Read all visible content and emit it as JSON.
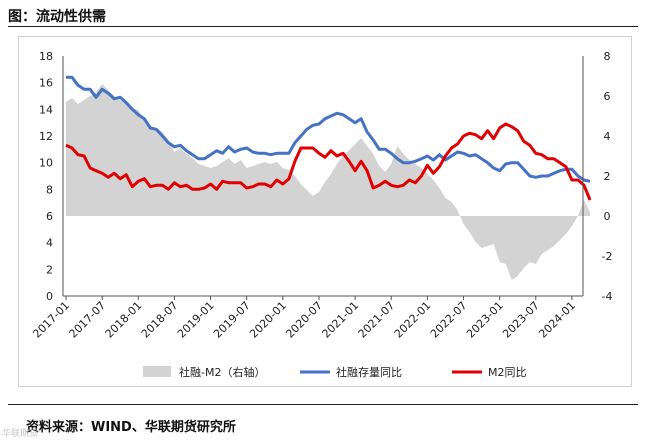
{
  "page_title": "图：流动性供需",
  "source_text": "资料来源：WIND、华联期货研究所",
  "watermark_text": "华联期货",
  "colors": {
    "area": "#d3d3d3",
    "stock_line": "#4472c4",
    "m2_line": "#e00000"
  },
  "chart_data": {
    "type": "line",
    "title": "",
    "xlabel": "",
    "ylabel": "",
    "left_axis": {
      "ylim": [
        0,
        18
      ],
      "ticks": [
        "0",
        "2",
        "4",
        "6",
        "8",
        "10",
        "12",
        "14",
        "16",
        "18"
      ]
    },
    "right_axis": {
      "ylim": [
        -4,
        8
      ],
      "ticks": [
        "-4",
        "-2",
        "0",
        "2",
        "4",
        "6",
        "8"
      ]
    },
    "x_ticks": [
      "2017-01",
      "2017-07",
      "2018-01",
      "2018-07",
      "2019-01",
      "2019-07",
      "2020-01",
      "2020-07",
      "2021-01",
      "2021-07",
      "2022-01",
      "2022-07",
      "2023-01",
      "2023-07",
      "2024-01"
    ],
    "grid": false,
    "legend_position": "bottom",
    "legend": [
      "社融-M2（右轴）",
      "社融存量同比",
      "M2同比"
    ],
    "x": [
      "2017-01",
      "2017-02",
      "2017-03",
      "2017-04",
      "2017-05",
      "2017-06",
      "2017-07",
      "2017-08",
      "2017-09",
      "2017-10",
      "2017-11",
      "2017-12",
      "2018-01",
      "2018-02",
      "2018-03",
      "2018-04",
      "2018-05",
      "2018-06",
      "2018-07",
      "2018-08",
      "2018-09",
      "2018-10",
      "2018-11",
      "2018-12",
      "2019-01",
      "2019-02",
      "2019-03",
      "2019-04",
      "2019-05",
      "2019-06",
      "2019-07",
      "2019-08",
      "2019-09",
      "2019-10",
      "2019-11",
      "2019-12",
      "2020-01",
      "2020-02",
      "2020-03",
      "2020-04",
      "2020-05",
      "2020-06",
      "2020-07",
      "2020-08",
      "2020-09",
      "2020-10",
      "2020-11",
      "2020-12",
      "2021-01",
      "2021-02",
      "2021-03",
      "2021-04",
      "2021-05",
      "2021-06",
      "2021-07",
      "2021-08",
      "2021-09",
      "2021-10",
      "2021-11",
      "2021-12",
      "2022-01",
      "2022-02",
      "2022-03",
      "2022-04",
      "2022-05",
      "2022-06",
      "2022-07",
      "2022-08",
      "2022-09",
      "2022-10",
      "2022-11",
      "2022-12",
      "2023-01",
      "2023-02",
      "2023-03",
      "2023-04",
      "2023-05",
      "2023-06",
      "2023-07",
      "2023-08",
      "2023-09",
      "2023-10",
      "2023-11",
      "2023-12",
      "2024-01",
      "2024-02",
      "2024-03",
      "2024-04"
    ],
    "series": [
      {
        "name": "社融-M2（右轴）",
        "axis": "right",
        "type": "area",
        "values": [
          5.7,
          5.9,
          5.6,
          5.8,
          6.0,
          6.2,
          6.6,
          6.3,
          6.0,
          5.8,
          5.6,
          5.4,
          5.3,
          4.8,
          4.5,
          4.4,
          4.2,
          3.8,
          3.2,
          3.4,
          3.1,
          2.9,
          2.6,
          2.5,
          2.4,
          2.5,
          2.7,
          2.9,
          2.6,
          2.8,
          2.4,
          2.5,
          2.6,
          2.7,
          2.6,
          2.7,
          2.4,
          2.3,
          2.0,
          1.6,
          1.3,
          1.0,
          1.2,
          1.7,
          2.1,
          2.6,
          3.0,
          3.3,
          3.6,
          3.9,
          3.5,
          3.1,
          2.5,
          2.2,
          2.6,
          3.5,
          3.1,
          2.8,
          2.6,
          2.4,
          2.1,
          1.8,
          1.4,
          0.9,
          0.7,
          0.3,
          -0.4,
          -0.8,
          -1.3,
          -1.6,
          -1.5,
          -1.4,
          -2.3,
          -2.4,
          -3.2,
          -3.0,
          -2.6,
          -2.3,
          -2.4,
          -1.9,
          -1.7,
          -1.5,
          -1.2,
          -0.9,
          -0.5,
          0.0,
          0.8,
          0.2
        ]
      },
      {
        "name": "社融存量同比",
        "axis": "left",
        "type": "line",
        "values": [
          16.4,
          16.4,
          15.8,
          15.5,
          15.5,
          14.9,
          15.5,
          15.2,
          14.8,
          14.9,
          14.5,
          14.0,
          13.6,
          13.3,
          12.6,
          12.5,
          12.0,
          11.5,
          11.2,
          11.3,
          10.9,
          10.6,
          10.3,
          10.3,
          10.6,
          10.9,
          10.7,
          11.2,
          10.8,
          11.0,
          11.1,
          10.8,
          10.7,
          10.7,
          10.6,
          10.7,
          10.7,
          10.7,
          11.5,
          12.0,
          12.5,
          12.8,
          12.9,
          13.3,
          13.5,
          13.7,
          13.6,
          13.3,
          13.0,
          13.3,
          12.3,
          11.7,
          11.0,
          11.0,
          10.7,
          10.3,
          10.0,
          10.0,
          10.1,
          10.3,
          10.5,
          10.2,
          10.6,
          10.2,
          10.5,
          10.8,
          10.7,
          10.5,
          10.6,
          10.3,
          10.0,
          9.6,
          9.4,
          9.9,
          10.0,
          10.0,
          9.5,
          9.0,
          8.9,
          9.0,
          9.0,
          9.2,
          9.4,
          9.5,
          9.5,
          9.0,
          8.7,
          8.6
        ]
      },
      {
        "name": "M2同比",
        "axis": "left",
        "type": "line",
        "values": [
          11.3,
          11.1,
          10.6,
          10.5,
          9.6,
          9.4,
          9.2,
          8.9,
          9.2,
          8.8,
          9.1,
          8.2,
          8.6,
          8.8,
          8.2,
          8.3,
          8.3,
          8.0,
          8.5,
          8.2,
          8.3,
          8.0,
          8.0,
          8.1,
          8.4,
          8.0,
          8.6,
          8.5,
          8.5,
          8.5,
          8.1,
          8.2,
          8.4,
          8.4,
          8.2,
          8.7,
          8.4,
          8.8,
          10.1,
          11.1,
          11.1,
          11.1,
          10.7,
          10.4,
          10.9,
          10.5,
          10.7,
          10.1,
          9.4,
          10.1,
          9.4,
          8.1,
          8.3,
          8.6,
          8.3,
          8.2,
          8.3,
          8.7,
          8.5,
          9.0,
          9.8,
          9.2,
          9.7,
          10.5,
          11.1,
          11.4,
          12.0,
          12.2,
          12.1,
          11.8,
          12.4,
          11.8,
          12.6,
          12.9,
          12.7,
          12.4,
          11.6,
          11.3,
          10.7,
          10.6,
          10.3,
          10.3,
          10.0,
          9.7,
          8.7,
          8.7,
          8.3,
          7.2
        ]
      }
    ]
  }
}
